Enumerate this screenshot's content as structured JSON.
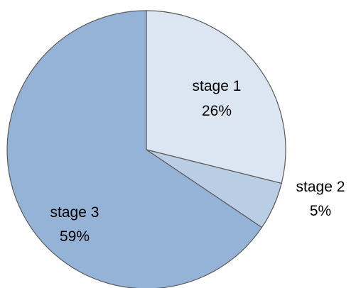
{
  "chart_data": {
    "type": "pie",
    "title": "",
    "slices": [
      {
        "label": "stage 1",
        "value": 26,
        "value_label": "26%",
        "color": "#dce6f2"
      },
      {
        "label": "stage 2",
        "value": 5,
        "value_label": "5%",
        "color": "#b9cde5"
      },
      {
        "label": "stage 3",
        "value": 59,
        "value_label": "59%",
        "color": "#95b3d7"
      }
    ],
    "slice_border_color": "#5a5a5a",
    "legend": "none",
    "start_angle": "12 o'clock",
    "direction": "clockwise"
  }
}
